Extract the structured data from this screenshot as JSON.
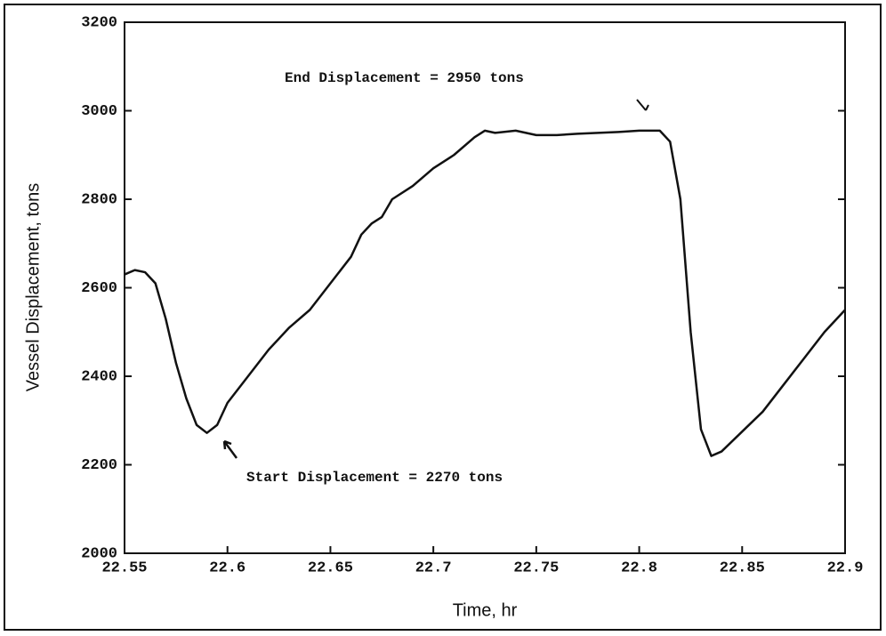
{
  "chart_data": {
    "type": "line",
    "xlabel": "Time, hr",
    "ylabel": "Vessel Displacement, tons",
    "annotations": [
      "End Displacement = 2950 tons",
      "Start Displacement = 2270 tons"
    ],
    "x": [
      22.55,
      22.555,
      22.56,
      22.565,
      22.57,
      22.575,
      22.58,
      22.585,
      22.59,
      22.595,
      22.6,
      22.61,
      22.62,
      22.63,
      22.64,
      22.65,
      22.66,
      22.665,
      22.67,
      22.675,
      22.68,
      22.69,
      22.7,
      22.71,
      22.72,
      22.725,
      22.73,
      22.74,
      22.745,
      22.75,
      22.76,
      22.77,
      22.78,
      22.79,
      22.8,
      22.81,
      22.815,
      22.82,
      22.825,
      22.83,
      22.835,
      22.84,
      22.85,
      22.86,
      22.87,
      22.88,
      22.89,
      22.9
    ],
    "series": [
      {
        "name": "Vessel Displacement",
        "color": "#111111",
        "values": [
          2630,
          2640,
          2635,
          2610,
          2530,
          2430,
          2350,
          2290,
          2272,
          2290,
          2340,
          2400,
          2460,
          2510,
          2550,
          2610,
          2670,
          2720,
          2745,
          2760,
          2800,
          2830,
          2870,
          2900,
          2940,
          2955,
          2950,
          2955,
          2950,
          2945,
          2945,
          2948,
          2950,
          2952,
          2955,
          2955,
          2930,
          2800,
          2500,
          2280,
          2220,
          2230,
          2275,
          2320,
          2380,
          2440,
          2500,
          2550
        ]
      }
    ],
    "xlim": [
      22.55,
      22.9
    ],
    "xticks": [
      22.55,
      22.6,
      22.65,
      22.7,
      22.75,
      22.8,
      22.85,
      22.9
    ],
    "ylim": [
      2000,
      3200
    ],
    "yticks": [
      2000,
      2200,
      2400,
      2600,
      2800,
      3000,
      3200
    ]
  }
}
